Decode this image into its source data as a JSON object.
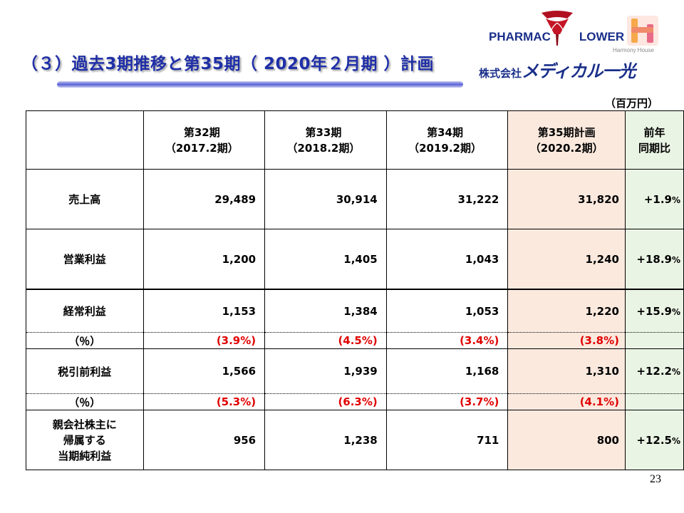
{
  "title": "（３）過去3期推移と第35期（ 2020年２月期 ）計画",
  "logo": {
    "pharmac_text": "PHARMAC",
    "flower_text": "LOWER",
    "harmony_text": "Harmony House",
    "company_prefix": "株式会社",
    "company_brand": "メディカル一光"
  },
  "unit_label": "（百万円）",
  "columns": [
    {
      "line1": "第32期",
      "line2": "（2017.2期）"
    },
    {
      "line1": "第33期",
      "line2": "（2018.2期）"
    },
    {
      "line1": "第34期",
      "line2": "（2019.2期）"
    },
    {
      "line1": "第35期計画",
      "line2": "（2020.2期）"
    },
    {
      "line1": "前年",
      "line2": "同期比"
    }
  ],
  "rows": {
    "sales": {
      "label": "売上高",
      "values": [
        "29,489",
        "30,914",
        "31,222",
        "31,820"
      ],
      "ratio": "+1.9",
      "ratio_unit": "%"
    },
    "operating": {
      "label": "営業利益",
      "values": [
        "1,200",
        "1,405",
        "1,043",
        "1,240"
      ],
      "ratio": "+18.9",
      "ratio_unit": "%"
    },
    "ordinary": {
      "label": "経常利益",
      "values": [
        "1,153",
        "1,384",
        "1,053",
        "1,220"
      ],
      "ratio": "+15.9",
      "ratio_unit": "%"
    },
    "ordinary_pct": {
      "label": "（％）",
      "values": [
        "(3.9%)",
        "(4.5%)",
        "(3.4%)",
        "(3.8%)"
      ]
    },
    "pretax": {
      "label": "税引前利益",
      "values": [
        "1,566",
        "1,939",
        "1,168",
        "1,310"
      ],
      "ratio": "+12.2",
      "ratio_unit": "%"
    },
    "pretax_pct": {
      "label": "（％）",
      "values": [
        "(5.3%)",
        "(6.3%)",
        "(3.7%)",
        "(4.1%)"
      ]
    },
    "net": {
      "label_lines": [
        "親会社株主に",
        "帰属する",
        "当期純利益"
      ],
      "values": [
        "956",
        "1,238",
        "711",
        "800"
      ],
      "ratio": "+12.5",
      "ratio_unit": "%"
    }
  },
  "page_number": "23",
  "colors": {
    "title": "#1f2fa8",
    "plan_bg": "#fbe9de",
    "ratio_bg": "#eaf4e4",
    "percent_text": "#e00000"
  }
}
